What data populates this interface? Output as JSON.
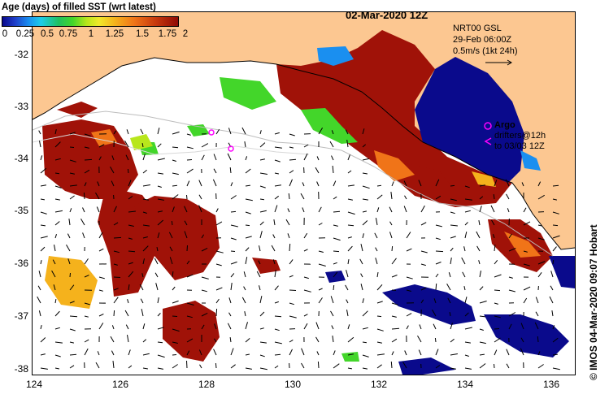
{
  "legend": {
    "title": "Age (days) of filled SST (wrt latest)",
    "ticks": [
      "0",
      "0.25",
      "0.5",
      "0.75",
      "1",
      "1.25",
      "1.5",
      "1.75",
      "2"
    ]
  },
  "date_title": "02-Mar-2020 12Z",
  "current_info": {
    "line1": "NRT00 GSL",
    "line2": "29-Feb 06:00Z",
    "line3": "0.5m/s (1kt 24h)"
  },
  "argo": {
    "label": "Argo",
    "drifters_line1": "drifters@12h",
    "drifters_line2": "to 03/03 12Z"
  },
  "credit": "© IMOS 04-Mar-2020 09:07 Hobart",
  "x_ticks": [
    "124",
    "126",
    "128",
    "130",
    "132",
    "134",
    "136"
  ],
  "y_ticks": [
    "-32",
    "-33",
    "-34",
    "-35",
    "-36",
    "-37",
    "-38"
  ],
  "colors": {
    "land": "#fcc791",
    "age_0": "#0a0a8c",
    "age_0_5": "#1a8ff0",
    "age_1": "#43d62a",
    "age_1_5": "#f5b21c",
    "age_2": "#a01208",
    "argo": "#ff00ff"
  }
}
